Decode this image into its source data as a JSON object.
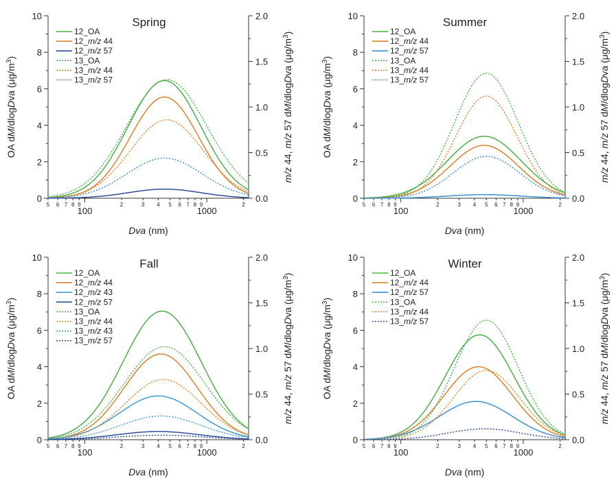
{
  "chart_data": [
    {
      "type": "line",
      "title": "Spring",
      "xlabel_italic": "Dva",
      "xlabel_rest": " (nm)",
      "ylabel_left": {
        "a": "OA d",
        "b": "M",
        "c": "/dlog",
        "d": "D",
        "e": "va (μg/m",
        "sup": "3",
        "f": ")"
      },
      "ylabel_right": {
        "a": "m/z",
        "b": " 44, ",
        "c": "m/z",
        "d": " 57 d",
        "e": "M",
        "f": "/dlog",
        "g": "D",
        "h": "va (μg/m",
        "sup": "3",
        "i": ")"
      },
      "xscale": "log",
      "xlim": [
        50,
        2200
      ],
      "ylim_left": [
        0,
        10
      ],
      "ylim_right": [
        0,
        2.0
      ],
      "yticks_left": [
        "0",
        "2",
        "4",
        "6",
        "8",
        "10"
      ],
      "yticks_right": [
        "0.0",
        "0.5",
        "1.0",
        "1.5",
        "2.0"
      ],
      "xticks_major": [
        "100",
        "1000"
      ],
      "xticks_minor": [
        "5",
        "6",
        "7",
        "8",
        "9",
        "2",
        "3",
        "4",
        "5",
        "6",
        "7",
        "8",
        "9",
        "2"
      ],
      "series": [
        {
          "name": "12_OA",
          "axis": "left",
          "color": "#4daf4a",
          "style": "solid",
          "peak_x": 450,
          "peak": 6.45,
          "sigma": 0.3
        },
        {
          "name": "12_m/z 44",
          "legend": {
            "p": "12_",
            "q": "m/z",
            "r": " 44"
          },
          "axis": "right",
          "color": "#d9822b",
          "style": "solid",
          "peak_x": 450,
          "peak": 1.11,
          "sigma": 0.28
        },
        {
          "name": "12_m/z 57",
          "legend": {
            "p": "12_",
            "q": "m/z",
            "r": " 57"
          },
          "axis": "right",
          "color": "#2e4d99",
          "style": "solid",
          "peak_x": 450,
          "peak": 0.1,
          "sigma": 0.3
        },
        {
          "name": "13_OA",
          "axis": "left",
          "color": "#4daf4a",
          "style": "dotted",
          "peak_x": 470,
          "peak": 6.5,
          "sigma": 0.33
        },
        {
          "name": "13_m/z 44",
          "legend": {
            "p": "13_",
            "q": "m/z",
            "r": " 44"
          },
          "axis": "right",
          "color": "#d9822b",
          "style": "dotted",
          "peak_x": 470,
          "peak": 0.86,
          "sigma": 0.3
        },
        {
          "name": "13_m/z 57",
          "legend": {
            "p": "13_",
            "q": "m/z",
            "r": " 57"
          },
          "axis": "right",
          "color": "#3c8fd6",
          "style": "dotted",
          "peak_x": 450,
          "peak": 0.44,
          "sigma": 0.31
        }
      ]
    },
    {
      "type": "line",
      "title": "Summer",
      "xlabel_italic": "Dva",
      "xlabel_rest": " (nm)",
      "ylabel_left": {
        "a": "OA d",
        "b": "M",
        "c": "/dlog",
        "d": "D",
        "e": "va (μg/m",
        "sup": "3",
        "f": ")"
      },
      "ylabel_right": {
        "a": "m/z",
        "b": " 44, ",
        "c": "m/z",
        "d": " 57 d",
        "e": "M",
        "f": "/dlog",
        "g": "D",
        "h": "va (μg/m",
        "sup": "3",
        "i": ")"
      },
      "xscale": "log",
      "xlim": [
        50,
        2200
      ],
      "ylim_left": [
        0,
        10
      ],
      "ylim_right": [
        0,
        2.0
      ],
      "yticks_left": [
        "0",
        "2",
        "4",
        "6",
        "8",
        "10"
      ],
      "yticks_right": [
        "0.0",
        "0.5",
        "1.0",
        "1.5",
        "2.0"
      ],
      "xticks_major": [
        "100",
        "1000"
      ],
      "xticks_minor": [
        "5",
        "6",
        "7",
        "8",
        "9",
        "2",
        "3",
        "4",
        "5",
        "6",
        "7",
        "8",
        "9",
        "2"
      ],
      "series": [
        {
          "name": "12_OA",
          "axis": "left",
          "color": "#4daf4a",
          "style": "solid",
          "peak_x": 480,
          "peak": 3.4,
          "sigma": 0.3
        },
        {
          "name": "12_m/z 44",
          "legend": {
            "p": "12_",
            "q": "m/z",
            "r": " 44"
          },
          "axis": "right",
          "color": "#d9822b",
          "style": "solid",
          "peak_x": 480,
          "peak": 0.58,
          "sigma": 0.28
        },
        {
          "name": "12_m/z 57",
          "legend": {
            "p": "12_",
            "q": "m/z",
            "r": " 57"
          },
          "axis": "right",
          "color": "#3c8fd6",
          "style": "solid",
          "peak_x": 480,
          "peak": 0.04,
          "sigma": 0.3
        },
        {
          "name": "13_OA",
          "axis": "left",
          "color": "#4daf4a",
          "style": "dotted",
          "peak_x": 500,
          "peak": 6.85,
          "sigma": 0.26
        },
        {
          "name": "13_m/z 44",
          "legend": {
            "p": "13_",
            "q": "m/z",
            "r": " 44"
          },
          "axis": "right",
          "color": "#d9822b",
          "style": "dotted",
          "peak_x": 500,
          "peak": 1.12,
          "sigma": 0.25
        },
        {
          "name": "13_m/z 57",
          "legend": {
            "p": "13_",
            "q": "m/z",
            "r": " 57"
          },
          "axis": "right",
          "color": "#3c8fd6",
          "style": "dotted",
          "peak_x": 500,
          "peak": 0.46,
          "sigma": 0.27
        }
      ]
    },
    {
      "type": "line",
      "title": "Fall",
      "xlabel_italic": "Dva",
      "xlabel_rest": " (nm)",
      "ylabel_left": {
        "a": "OA d",
        "b": "M",
        "c": "/dlog",
        "d": "D",
        "e": "va (μg/m",
        "sup": "3",
        "f": ")"
      },
      "ylabel_right": {
        "a": "m/z",
        "b": " 44, ",
        "c": "m/z",
        "d": " 57 d",
        "e": "M",
        "f": "/dlog",
        "g": "D",
        "h": "va (μg/m",
        "sup": "3",
        "i": ")"
      },
      "xscale": "log",
      "xlim": [
        50,
        2200
      ],
      "ylim_left": [
        0,
        10
      ],
      "ylim_right": [
        0,
        2.0
      ],
      "yticks_left": [
        "0",
        "2",
        "4",
        "6",
        "8",
        "10"
      ],
      "yticks_right": [
        "0.0",
        "0.5",
        "1.0",
        "1.5",
        "2.0"
      ],
      "xticks_major": [
        "100",
        "1000"
      ],
      "xticks_minor": [
        "5",
        "6",
        "7",
        "8",
        "9",
        "2",
        "3",
        "4",
        "5",
        "6",
        "7",
        "8",
        "9",
        "2"
      ],
      "series": [
        {
          "name": "12_OA",
          "axis": "left",
          "color": "#4daf4a",
          "style": "solid",
          "peak_x": 430,
          "peak": 7.05,
          "sigma": 0.32
        },
        {
          "name": "12_m/z 44",
          "legend": {
            "p": "12_",
            "q": "m/z",
            "r": " 44"
          },
          "axis": "right",
          "color": "#d9822b",
          "style": "solid",
          "peak_x": 420,
          "peak": 0.94,
          "sigma": 0.3
        },
        {
          "name": "12_m/z 43",
          "legend": {
            "p": "12_",
            "q": "m/z",
            "r": " 43"
          },
          "axis": "right",
          "color": "#3c9ad6",
          "style": "solid",
          "peak_x": 400,
          "peak": 0.48,
          "sigma": 0.32
        },
        {
          "name": "12_m/z 57",
          "legend": {
            "p": "12_",
            "q": "m/z",
            "r": " 57"
          },
          "axis": "right",
          "color": "#2e4d99",
          "style": "solid",
          "peak_x": 400,
          "peak": 0.09,
          "sigma": 0.34
        },
        {
          "name": "13_OA",
          "axis": "left",
          "color": "#4daf4a",
          "style": "dotted",
          "peak_x": 450,
          "peak": 5.1,
          "sigma": 0.33
        },
        {
          "name": "13_m/z 44",
          "legend": {
            "p": "13_",
            "q": "m/z",
            "r": " 44"
          },
          "axis": "right",
          "color": "#d9822b",
          "style": "dotted",
          "peak_x": 440,
          "peak": 0.66,
          "sigma": 0.31
        },
        {
          "name": "13_m/z 43",
          "legend": {
            "p": "13_",
            "q": "m/z",
            "r": " 43"
          },
          "axis": "right",
          "color": "#3c9ad6",
          "style": "dotted",
          "peak_x": 420,
          "peak": 0.26,
          "sigma": 0.33
        },
        {
          "name": "13_m/z 57",
          "legend": {
            "p": "13_",
            "q": "m/z",
            "r": " 57"
          },
          "axis": "right",
          "color": "#2e4d99",
          "style": "dotted",
          "peak_x": 420,
          "peak": 0.05,
          "sigma": 0.35
        }
      ]
    },
    {
      "type": "line",
      "title": "Winter",
      "xlabel_italic": "Dva",
      "xlabel_rest": " (nm)",
      "ylabel_left": {
        "a": "OA d",
        "b": "M",
        "c": "/dlog",
        "d": "D",
        "e": "va (μg/m",
        "sup": "3",
        "f": ")"
      },
      "ylabel_right": {
        "a": "m/z",
        "b": " 44, ",
        "c": "m/z",
        "d": " 57 d",
        "e": "M",
        "f": "/dlog",
        "g": "D",
        "h": "va (μg/m",
        "sup": "3",
        "i": ")"
      },
      "xscale": "log",
      "xlim": [
        50,
        2200
      ],
      "ylim_left": [
        0,
        10
      ],
      "ylim_right": [
        0,
        2.0
      ],
      "yticks_left": [
        "0",
        "2",
        "4",
        "6",
        "8",
        "10"
      ],
      "yticks_right": [
        "0.0",
        "0.5",
        "1.0",
        "1.5",
        "2.0"
      ],
      "xticks_major": [
        "100",
        "1000"
      ],
      "xticks_minor": [
        "5",
        "6",
        "7",
        "8",
        "9",
        "2",
        "3",
        "4",
        "5",
        "6",
        "7",
        "8",
        "9",
        "2"
      ],
      "series": [
        {
          "name": "12_OA",
          "axis": "left",
          "color": "#4daf4a",
          "style": "solid",
          "peak_x": 440,
          "peak": 5.75,
          "sigma": 0.28
        },
        {
          "name": "12_m/z 44",
          "legend": {
            "p": "12_",
            "q": "m/z",
            "r": " 44"
          },
          "axis": "right",
          "color": "#d9822b",
          "style": "solid",
          "peak_x": 430,
          "peak": 0.8,
          "sigma": 0.28
        },
        {
          "name": "12_m/z 57",
          "legend": {
            "p": "12_",
            "q": "m/z",
            "r": " 57"
          },
          "axis": "right",
          "color": "#3c8fd6",
          "style": "solid",
          "peak_x": 410,
          "peak": 0.42,
          "sigma": 0.3
        },
        {
          "name": "13_OA",
          "axis": "left",
          "color": "#4daf4a",
          "style": "dotted",
          "peak_x": 500,
          "peak": 6.55,
          "sigma": 0.26
        },
        {
          "name": "13_m/z 44",
          "legend": {
            "p": "13_",
            "q": "m/z",
            "r": " 44"
          },
          "axis": "right",
          "color": "#d9822b",
          "style": "dotted",
          "peak_x": 500,
          "peak": 0.76,
          "sigma": 0.27
        },
        {
          "name": "13_m/z 57",
          "legend": {
            "p": "13_",
            "q": "m/z",
            "r": " 57"
          },
          "axis": "right",
          "color": "#2e4d99",
          "style": "dotted",
          "peak_x": 480,
          "peak": 0.12,
          "sigma": 0.3
        }
      ]
    }
  ]
}
